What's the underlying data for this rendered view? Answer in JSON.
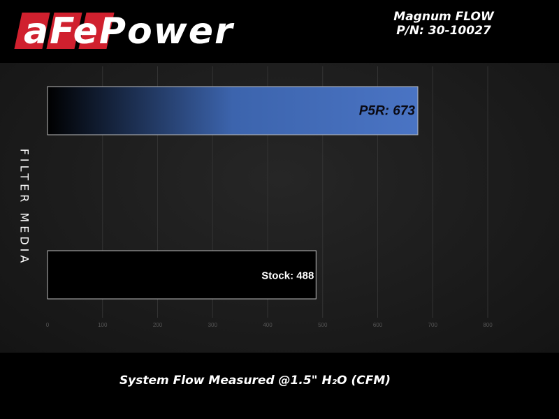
{
  "logo": {
    "text": "aFePower"
  },
  "chart_data": {
    "type": "bar",
    "orientation": "horizontal",
    "title": "Magnum FLOW",
    "subtitle": "P/N: 30-10027",
    "xlabel": "System Flow Measured @1.5\" H₂O (CFM)",
    "ylabel": "FILTER MEDIA",
    "xlim": [
      0,
      800
    ],
    "xticks": [
      0,
      100,
      200,
      300,
      400,
      500,
      600,
      700,
      800
    ],
    "grid": true,
    "categories": [
      "P5R",
      "Stock"
    ],
    "values": [
      673,
      488
    ],
    "data_labels": [
      "P5R: 673",
      "Stock: 488"
    ],
    "colors": {
      "P5R": "#4a74c4",
      "Stock": "#000000"
    }
  }
}
